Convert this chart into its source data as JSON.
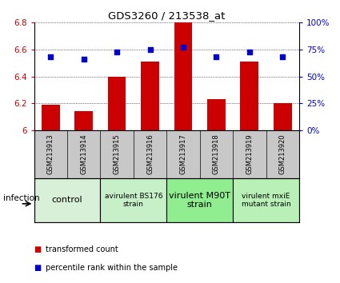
{
  "title": "GDS3260 / 213538_at",
  "samples": [
    "GSM213913",
    "GSM213914",
    "GSM213915",
    "GSM213916",
    "GSM213917",
    "GSM213918",
    "GSM213919",
    "GSM213920"
  ],
  "bar_values": [
    6.19,
    6.14,
    6.4,
    6.51,
    6.8,
    6.23,
    6.51,
    6.2
  ],
  "dot_values": [
    68,
    66,
    73,
    75,
    77,
    68,
    73,
    68
  ],
  "ylim_left": [
    6.0,
    6.8
  ],
  "ylim_right": [
    0,
    100
  ],
  "yticks_left": [
    6.0,
    6.2,
    6.4,
    6.6,
    6.8
  ],
  "ytick_labels_left": [
    "6",
    "6.2",
    "6.4",
    "6.6",
    "6.8"
  ],
  "yticks_right": [
    0,
    25,
    50,
    75,
    100
  ],
  "ytick_labels_right": [
    "0%",
    "25%",
    "50%",
    "75%",
    "100%"
  ],
  "bar_color": "#cc0000",
  "dot_color": "#0000cc",
  "bar_width": 0.55,
  "groups": [
    {
      "label": "control",
      "indices": [
        0,
        1
      ],
      "color": "#d8f0d8",
      "fontsize": 8
    },
    {
      "label": "avirulent BS176\nstrain",
      "indices": [
        2,
        3
      ],
      "color": "#c8f0c8",
      "fontsize": 6.5
    },
    {
      "label": "virulent M90T\nstrain",
      "indices": [
        4,
        5
      ],
      "color": "#90ee90",
      "fontsize": 8
    },
    {
      "label": "virulent mxiE\nmutant strain",
      "indices": [
        6,
        7
      ],
      "color": "#b8f0b8",
      "fontsize": 6.5
    }
  ],
  "infection_label": "infection",
  "legend_bar_label": "transformed count",
  "legend_dot_label": "percentile rank within the sample",
  "tick_label_color_left": "#cc0000",
  "tick_label_color_right": "#0000cc",
  "sample_area_color": "#c8c8c8",
  "grid_linestyle": "dotted"
}
